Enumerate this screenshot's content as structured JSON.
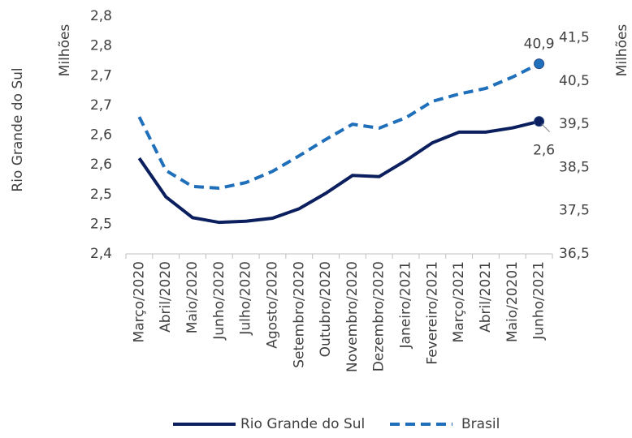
{
  "chart_data": {
    "type": "line",
    "categories": [
      "Março/2020",
      "Abril/2020",
      "Maio/2020",
      "Junho/2020",
      "Julho/2020",
      "Agosto/2020",
      "Setembro/2020",
      "Outubro/2020",
      "Novembro/2020",
      "Dezembro/2020",
      "Janeiro/2021",
      "Fevereiro/2021",
      "Março/2021",
      "Abril/2021",
      "Maio/20201",
      "Junho/2021"
    ],
    "y_label": "Rio Grande do Sul",
    "y_unit": "Milhões",
    "y2_unit": "Milhões",
    "ylim": [
      2.4,
      2.8
    ],
    "yticks": [
      {
        "value": 2.4,
        "label": "2,4"
      },
      {
        "value": 2.45,
        "label": "2,5"
      },
      {
        "value": 2.5,
        "label": "2,5"
      },
      {
        "value": 2.55,
        "label": "2,6"
      },
      {
        "value": 2.6,
        "label": "2,6"
      },
      {
        "value": 2.65,
        "label": "2,7"
      },
      {
        "value": 2.7,
        "label": "2,7"
      },
      {
        "value": 2.75,
        "label": "2,8"
      },
      {
        "value": 2.8,
        "label": "2,8"
      }
    ],
    "y2lim": [
      36.5,
      42
    ],
    "y2ticks": [
      {
        "value": 36.5,
        "label": "36,5"
      },
      {
        "value": 37.5,
        "label": "37,5"
      },
      {
        "value": 38.5,
        "label": "38,5"
      },
      {
        "value": 39.5,
        "label": "39,5"
      },
      {
        "value": 40.5,
        "label": "40,5"
      },
      {
        "value": 41.5,
        "label": "41,5"
      }
    ],
    "grid": false,
    "legend": "bottom",
    "series": [
      {
        "name": "Rio Grande do Sul",
        "color": "#0b1f5e",
        "dash": false,
        "values": [
          2.561,
          2.496,
          2.461,
          2.453,
          2.455,
          2.46,
          2.476,
          2.502,
          2.532,
          2.53,
          2.557,
          2.587,
          2.605,
          2.605,
          2.612,
          2.623
        ],
        "value_labels": [
          null,
          null,
          null,
          null,
          null,
          null,
          null,
          null,
          null,
          null,
          null,
          null,
          null,
          null,
          null,
          "2,6"
        ]
      },
      {
        "name": "Brasil",
        "color": "#1f6fba",
        "dash": true,
        "axis": "y2",
        "values": [
          39.67,
          38.43,
          38.06,
          38.02,
          38.15,
          38.41,
          38.77,
          39.15,
          39.5,
          39.41,
          39.65,
          40.03,
          40.2,
          40.33,
          40.59,
          40.9
        ],
        "value_labels": [
          null,
          null,
          null,
          null,
          null,
          null,
          null,
          null,
          null,
          null,
          null,
          null,
          null,
          null,
          null,
          "40,9"
        ]
      }
    ]
  }
}
